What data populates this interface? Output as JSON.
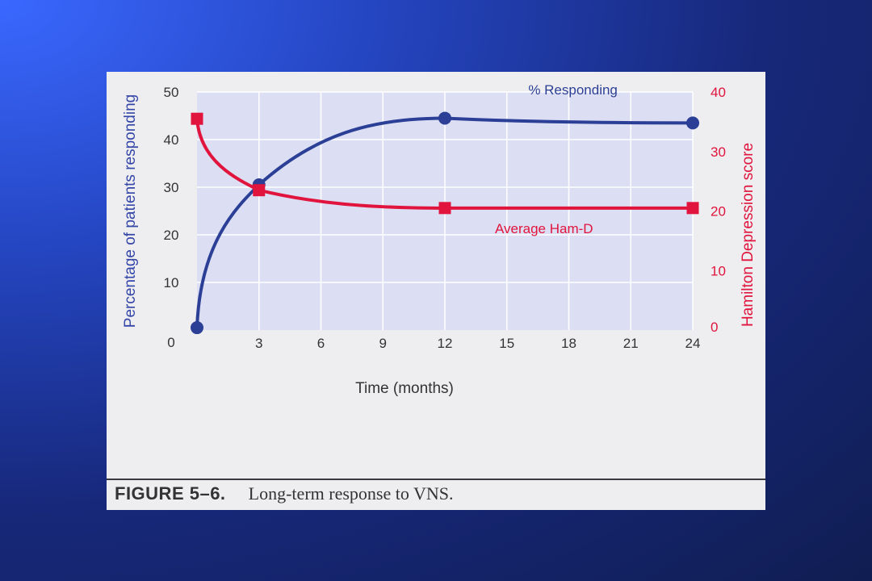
{
  "colors": {
    "responding": "#2b3f96",
    "hamd": "#e0143c",
    "plot_bg": "#dcdff3",
    "grid": "#ffffff"
  },
  "caption": {
    "label": "FIGURE 5–6.",
    "text": "Long-term response to VNS."
  },
  "chart_data": {
    "type": "line",
    "xlabel": "Time (months)",
    "ylabel_left": "Percentage of patients responding",
    "ylabel_right": "Hamilton Depression score",
    "x_ticks": [
      3,
      6,
      9,
      12,
      15,
      18,
      21,
      24
    ],
    "x_origin_label": "0",
    "xlim": [
      0,
      24
    ],
    "y_left_ticks": [
      0,
      10,
      20,
      30,
      40,
      50
    ],
    "y_left_lim": [
      0,
      50
    ],
    "y_right_ticks": [
      0,
      10,
      20,
      30,
      40
    ],
    "y_right_lim": [
      0,
      40
    ],
    "grid": true,
    "series": [
      {
        "name": "% Responding",
        "axis": "left",
        "marker": "circle",
        "x": [
          0,
          3,
          12,
          24
        ],
        "y": [
          0.5,
          30.5,
          44.5,
          43.5
        ]
      },
      {
        "name": "Average Ham-D",
        "axis": "right",
        "marker": "square",
        "x": [
          0,
          3,
          12,
          24
        ],
        "y": [
          35.5,
          23.5,
          20.5,
          20.5
        ]
      }
    ]
  }
}
